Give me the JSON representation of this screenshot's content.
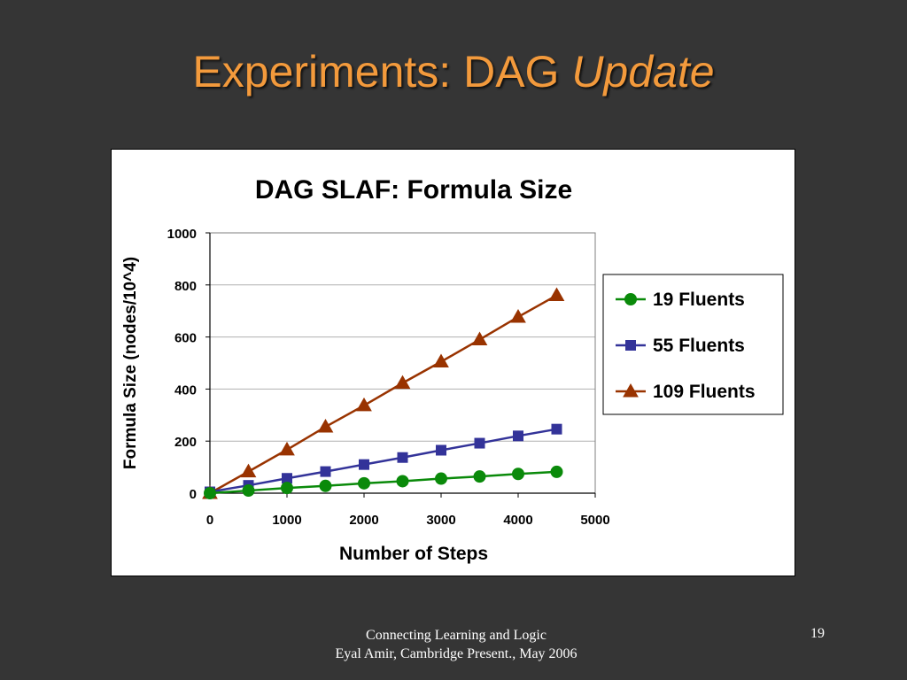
{
  "slide": {
    "title_main": "Experiments: DAG ",
    "title_italic": "Update",
    "footer_line1": "Connecting Learning and Logic",
    "footer_line2": "Eyal Amir, Cambridge Present., May 2006",
    "page_number": "19"
  },
  "colors": {
    "background": "#353535",
    "title": "#f39a3c",
    "series_19": "#0a8a0a",
    "series_55": "#333399",
    "series_109": "#993300"
  },
  "chart_data": {
    "type": "line",
    "title": "DAG SLAF: Formula Size",
    "xlabel": "Number of Steps",
    "ylabel": "Formula Size (nodes/10^4)",
    "xlim": [
      0,
      5000
    ],
    "ylim": [
      0,
      1000
    ],
    "xticks": [
      0,
      1000,
      2000,
      3000,
      4000,
      5000
    ],
    "yticks": [
      0,
      200,
      400,
      600,
      800,
      1000
    ],
    "grid": "horizontal",
    "legend_position": "right",
    "x": [
      0,
      500,
      1000,
      1500,
      2000,
      2500,
      3000,
      3500,
      4000,
      4500
    ],
    "series": [
      {
        "name": "19 Fluents",
        "marker": "circle",
        "color": "#0a8a0a",
        "values": [
          0,
          10,
          20,
          28,
          38,
          46,
          56,
          64,
          74,
          82
        ]
      },
      {
        "name": "55 Fluents",
        "marker": "square",
        "color": "#333399",
        "values": [
          5,
          30,
          57,
          83,
          110,
          137,
          165,
          192,
          220,
          246
        ]
      },
      {
        "name": "109 Fluents",
        "marker": "triangle",
        "color": "#993300",
        "values": [
          0,
          83,
          167,
          255,
          337,
          423,
          505,
          590,
          677,
          760
        ]
      }
    ]
  }
}
